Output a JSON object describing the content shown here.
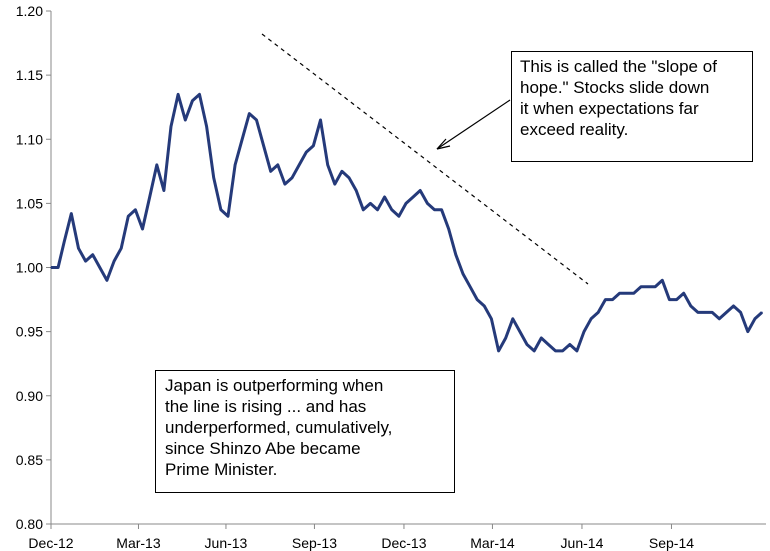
{
  "chart_data": {
    "type": "line",
    "title": "",
    "xlabel": "",
    "ylabel": "",
    "ylim": [
      0.8,
      1.2
    ],
    "y_ticks": [
      "0.80",
      "0.85",
      "0.90",
      "0.95",
      "1.00",
      "1.05",
      "1.10",
      "1.15",
      "1.20"
    ],
    "x_ticks": [
      "Dec-12",
      "Mar-13",
      "Jun-13",
      "Sep-13",
      "Dec-13",
      "Mar-14",
      "Jun-14",
      "Sep-14"
    ],
    "grid": false,
    "legend": "none",
    "line_color": "#253a7a",
    "series": [
      {
        "x": [
          "2012-12-26",
          "2013-01-02",
          "2013-01-08",
          "2013-01-15",
          "2013-01-22",
          "2013-01-29",
          "2013-02-05",
          "2013-02-12",
          "2013-02-19",
          "2013-02-26",
          "2013-03-05",
          "2013-03-12",
          "2013-03-19",
          "2013-03-26",
          "2013-04-02",
          "2013-04-09",
          "2013-04-16",
          "2013-04-23",
          "2013-04-30",
          "2013-05-07",
          "2013-05-14",
          "2013-05-21",
          "2013-05-28",
          "2013-06-04",
          "2013-06-11",
          "2013-06-18",
          "2013-06-25",
          "2013-07-02",
          "2013-07-09",
          "2013-07-16",
          "2013-07-23",
          "2013-07-30",
          "2013-08-06",
          "2013-08-13",
          "2013-08-20",
          "2013-08-27",
          "2013-09-03",
          "2013-09-10",
          "2013-09-17",
          "2013-09-24",
          "2013-10-01",
          "2013-10-08",
          "2013-10-15",
          "2013-10-22",
          "2013-10-29",
          "2013-11-05",
          "2013-11-12",
          "2013-11-19",
          "2013-11-26",
          "2013-12-03",
          "2013-12-10",
          "2013-12-17",
          "2013-12-24",
          "2013-12-31",
          "2014-01-07",
          "2014-01-14",
          "2014-01-21",
          "2014-01-28",
          "2014-02-04",
          "2014-02-11",
          "2014-02-18",
          "2014-02-25",
          "2014-03-04",
          "2014-03-11",
          "2014-03-18",
          "2014-03-25",
          "2014-04-01",
          "2014-04-08",
          "2014-04-15",
          "2014-04-22",
          "2014-04-29",
          "2014-05-06",
          "2014-05-13",
          "2014-05-20",
          "2014-05-27",
          "2014-06-03",
          "2014-06-10",
          "2014-06-17",
          "2014-06-24",
          "2014-07-01",
          "2014-07-08",
          "2014-07-15",
          "2014-07-22",
          "2014-07-29",
          "2014-08-05",
          "2014-08-12",
          "2014-08-19",
          "2014-08-26",
          "2014-09-02",
          "2014-09-09",
          "2014-09-16",
          "2014-09-23",
          "2014-09-30",
          "2014-10-07",
          "2014-10-14",
          "2014-10-21",
          "2014-10-28",
          "2014-11-04",
          "2014-11-11",
          "2014-11-18",
          "2014-11-25"
        ],
        "values": [
          1.0,
          1.0,
          1.02,
          1.042,
          1.015,
          1.005,
          1.01,
          1.0,
          0.99,
          1.005,
          1.015,
          1.04,
          1.045,
          1.03,
          1.055,
          1.08,
          1.06,
          1.11,
          1.135,
          1.115,
          1.13,
          1.135,
          1.11,
          1.07,
          1.045,
          1.04,
          1.08,
          1.1,
          1.12,
          1.115,
          1.095,
          1.075,
          1.08,
          1.065,
          1.07,
          1.08,
          1.09,
          1.095,
          1.115,
          1.08,
          1.065,
          1.075,
          1.07,
          1.06,
          1.045,
          1.05,
          1.045,
          1.055,
          1.045,
          1.04,
          1.05,
          1.055,
          1.06,
          1.05,
          1.045,
          1.045,
          1.03,
          1.01,
          0.995,
          0.985,
          0.975,
          0.97,
          0.96,
          0.935,
          0.945,
          0.96,
          0.95,
          0.94,
          0.935,
          0.945,
          0.94,
          0.935,
          0.935,
          0.94,
          0.935,
          0.95,
          0.96,
          0.965,
          0.975,
          0.975,
          0.98,
          0.98,
          0.98,
          0.985,
          0.985,
          0.985,
          0.99,
          0.975,
          0.975,
          0.98,
          0.97,
          0.965,
          0.965,
          0.965,
          0.96,
          0.965,
          0.97,
          0.965,
          0.95,
          0.96,
          0.965
        ]
      }
    ],
    "annotations": [
      {
        "id": "slope",
        "lines": [
          "This is called the \"slope of",
          "hope.\" Stocks slide down",
          "it when expectations far",
          "exceed reality."
        ]
      },
      {
        "id": "japan",
        "lines": [
          "Japan is outperforming when",
          "the line is rising ... and has",
          "underperformed, cumulatively,",
          "since Shinzo Abe became",
          "Prime Minister."
        ]
      }
    ]
  }
}
